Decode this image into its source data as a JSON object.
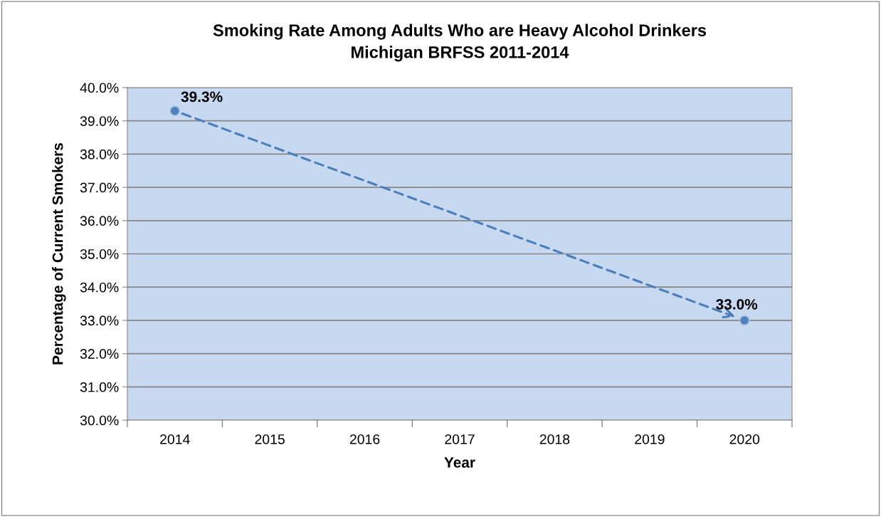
{
  "chart_data": {
    "type": "scatter",
    "title": "Smoking Rate Among Adults Who are Heavy Alcohol Drinkers\nMichigan BRFSS 2011-2014",
    "xlabel": "Year",
    "ylabel": "Percentage of Current Smokers",
    "categories": [
      "2014",
      "2015",
      "2016",
      "2017",
      "2018",
      "2019",
      "2020"
    ],
    "series": [
      {
        "color": "#4f81bd",
        "values": [
          39.3,
          null,
          null,
          null,
          null,
          null,
          33.0
        ],
        "value_labels": [
          "39.3%",
          null,
          null,
          null,
          null,
          null,
          "33.0%"
        ]
      }
    ],
    "ylim": [
      30,
      40
    ],
    "yticks": [
      {
        "value": 30,
        "label": "30.0%"
      },
      {
        "value": 31,
        "label": "31.0%"
      },
      {
        "value": 32,
        "label": "32.0%"
      },
      {
        "value": 33,
        "label": "33.0%"
      },
      {
        "value": 34,
        "label": "34.0%"
      },
      {
        "value": 35,
        "label": "35.0%"
      },
      {
        "value": 36,
        "label": "36.0%"
      },
      {
        "value": 37,
        "label": "37.0%"
      },
      {
        "value": 38,
        "label": "38.0%"
      },
      {
        "value": 39,
        "label": "39.0%"
      },
      {
        "value": 40,
        "label": "40.0%"
      }
    ],
    "grid": "y",
    "marker": "circle"
  }
}
